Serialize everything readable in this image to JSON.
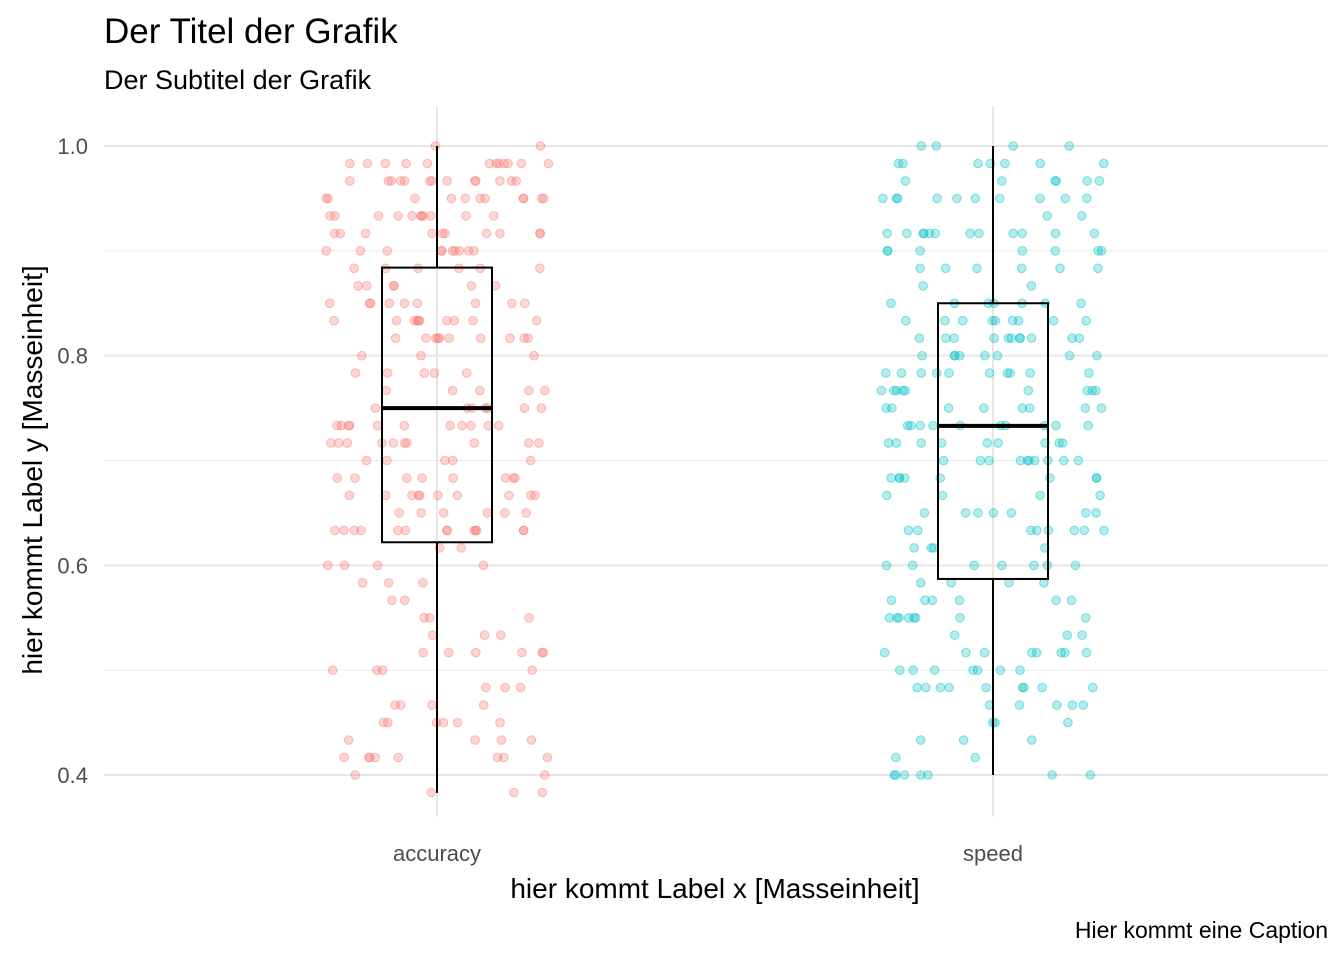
{
  "chart_data": {
    "type": "box",
    "title": "Der Titel der Grafik",
    "subtitle": "Der Subtitel der Grafik",
    "caption": "Hier kommt eine Caption",
    "xlabel": "hier kommt Label x [Masseinheit]",
    "ylabel": "hier kommt Label y [Masseinheit]",
    "categories": [
      "accuracy",
      "speed"
    ],
    "ylim": [
      0.37,
      1.03
    ],
    "yticks": [
      0.4,
      0.6,
      0.8,
      1.0
    ],
    "ytick_labels": [
      "0.4",
      "0.6",
      "0.8",
      "1.0"
    ],
    "grid": true,
    "legend": "none",
    "boxes": [
      {
        "category": "accuracy",
        "min": 0.383,
        "q1": 0.622,
        "median": 0.75,
        "q3": 0.884,
        "max": 1.0,
        "color": "#F8766D"
      },
      {
        "category": "speed",
        "min": 0.4,
        "q1": 0.587,
        "median": 0.733,
        "q3": 0.85,
        "max": 1.0,
        "color": "#00BFC4"
      }
    ],
    "jitter_points_per_group": 250
  }
}
